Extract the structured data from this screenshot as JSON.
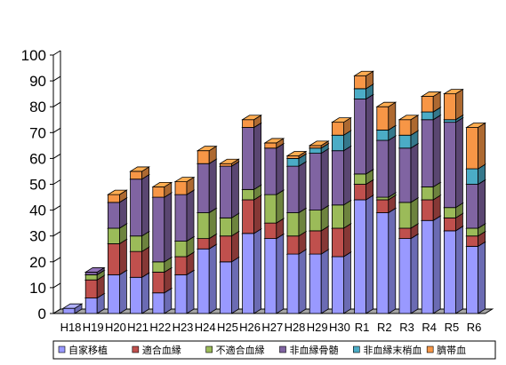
{
  "chart_data": {
    "type": "bar",
    "stacked": true,
    "style": "3d-columns",
    "categories": [
      "H18",
      "H19",
      "H20",
      "H21",
      "H22",
      "H23",
      "H24",
      "H25",
      "H26",
      "H27",
      "H28",
      "H29",
      "H30",
      "R1",
      "R2",
      "R3",
      "R4",
      "R5",
      "R6"
    ],
    "ylim": [
      0,
      100
    ],
    "yticks": [
      0,
      10,
      20,
      30,
      40,
      50,
      60,
      70,
      80,
      90,
      100
    ],
    "grid": false,
    "legend_position": "bottom",
    "series": [
      {
        "name": "自家移植",
        "color": "#9999ff",
        "values": [
          2,
          6,
          15,
          14,
          8,
          15,
          25,
          20,
          31,
          29,
          23,
          23,
          22,
          44,
          39,
          29,
          36,
          32,
          26
        ]
      },
      {
        "name": "適合血縁",
        "color": "#c0504d",
        "values": [
          0,
          7,
          12,
          10,
          8,
          7,
          4,
          10,
          13,
          6,
          7,
          9,
          11,
          6,
          5,
          4,
          8,
          5,
          4
        ]
      },
      {
        "name": "不適合血縁",
        "color": "#9bbb59",
        "values": [
          0,
          2,
          6,
          6,
          4,
          6,
          10,
          7,
          4,
          11,
          9,
          8,
          9,
          4,
          1,
          10,
          5,
          4,
          3
        ]
      },
      {
        "name": "非血縁骨髄",
        "color": "#8064a2",
        "values": [
          0,
          1,
          10,
          22,
          25,
          18,
          19,
          20,
          24,
          18,
          18,
          22,
          21,
          29,
          22,
          21,
          26,
          33,
          17
        ]
      },
      {
        "name": "非血縁末梢血",
        "color": "#4bacc6",
        "values": [
          0,
          0,
          0,
          0,
          0,
          0,
          0,
          0,
          0,
          0,
          3,
          2,
          6,
          4,
          4,
          5,
          3,
          1,
          6
        ]
      },
      {
        "name": "臍帯血",
        "color": "#f79646",
        "values": [
          0,
          0,
          3,
          3,
          4,
          5,
          5,
          1,
          3,
          2,
          1,
          1,
          5,
          5,
          9,
          6,
          6,
          10,
          16
        ]
      }
    ]
  }
}
